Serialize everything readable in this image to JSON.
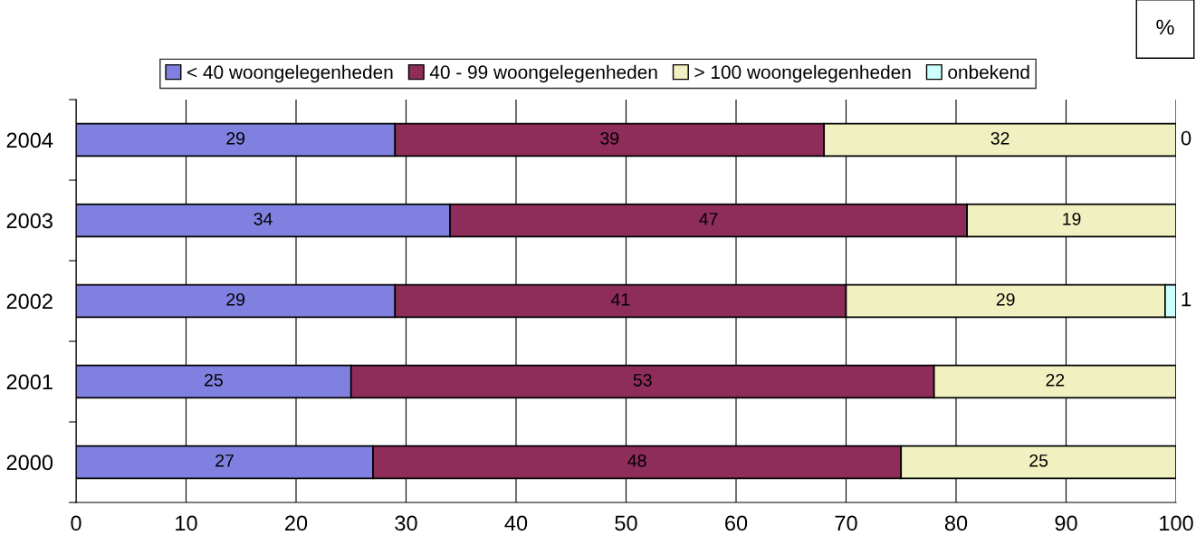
{
  "chart_data": {
    "type": "bar",
    "orientation": "horizontal",
    "stacked": true,
    "categories": [
      "2004",
      "2003",
      "2002",
      "2001",
      "2000"
    ],
    "series": [
      {
        "name": "< 40 woongelegenheden",
        "color": "#8080e0",
        "values": [
          29,
          34,
          29,
          25,
          27
        ],
        "value_labels": [
          "29",
          "34",
          "29",
          "25",
          "27"
        ]
      },
      {
        "name": "40 - 99 woongelegenheden",
        "color": "#8e2c5a",
        "values": [
          39,
          47,
          41,
          53,
          48
        ],
        "value_labels": [
          "39",
          "47",
          "41",
          "53",
          "48"
        ]
      },
      {
        "name": "> 100 woongelegenheden",
        "color": "#f0f0c0",
        "values": [
          32,
          19,
          29,
          22,
          25
        ],
        "value_labels": [
          "32",
          "19",
          "29",
          "22",
          "25"
        ]
      },
      {
        "name": "onbekend",
        "color": "#ccffff",
        "values": [
          0,
          0,
          1,
          0,
          0
        ],
        "value_labels": [
          "0",
          null,
          "1",
          null,
          null
        ]
      }
    ],
    "xlim": [
      0,
      100
    ],
    "xticks": [
      0,
      10,
      20,
      30,
      40,
      50,
      60,
      70,
      80,
      90,
      100
    ],
    "grid": "x",
    "legend": "top",
    "annotations": [
      "%"
    ]
  }
}
